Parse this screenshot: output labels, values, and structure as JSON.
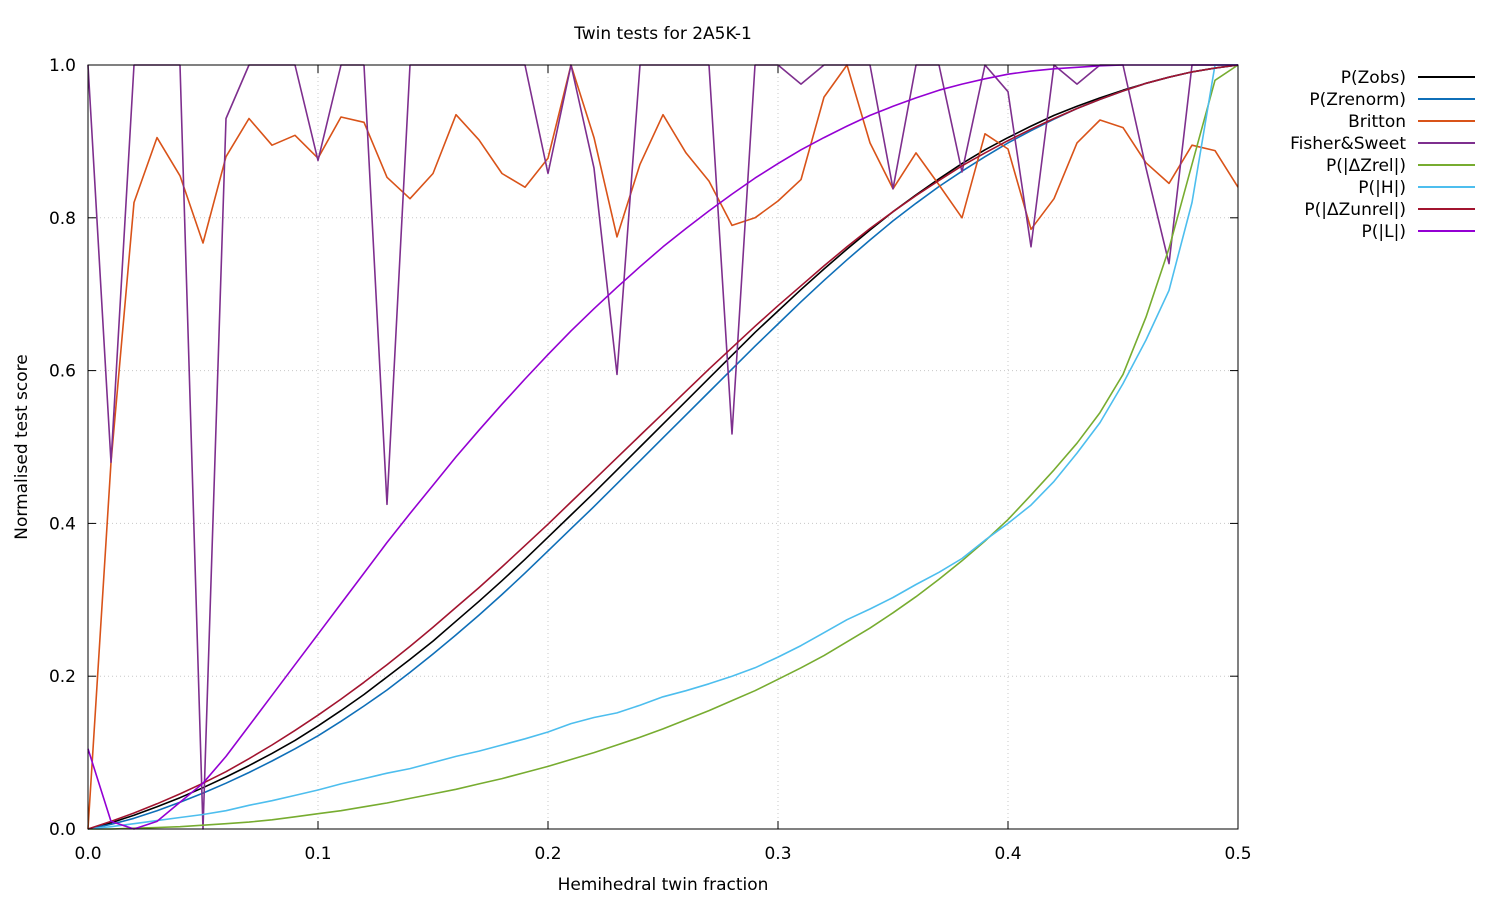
{
  "chart_data": {
    "type": "line",
    "title": "Twin tests for 2A5K-1",
    "xlabel": "Hemihedral twin fraction",
    "ylabel": "Normalised test score",
    "xlim": [
      0.0,
      0.5
    ],
    "ylim": [
      0.0,
      1.0
    ],
    "x_ticks": [
      "0.0",
      "0.1",
      "0.2",
      "0.3",
      "0.4",
      "0.5"
    ],
    "y_ticks": [
      "0.0",
      "0.2",
      "0.4",
      "0.6",
      "0.8",
      "1.0"
    ],
    "grid": true,
    "legend_position": "outside-top-right",
    "x": [
      0.0,
      0.01,
      0.02,
      0.03,
      0.04,
      0.05,
      0.06,
      0.07,
      0.08,
      0.09,
      0.1,
      0.11,
      0.12,
      0.13,
      0.14,
      0.15,
      0.16,
      0.17,
      0.18,
      0.19,
      0.2,
      0.21,
      0.22,
      0.23,
      0.24,
      0.25,
      0.26,
      0.27,
      0.28,
      0.29,
      0.3,
      0.31,
      0.32,
      0.33,
      0.34,
      0.35,
      0.36,
      0.37,
      0.38,
      0.39,
      0.4,
      0.41,
      0.42,
      0.43,
      0.44,
      0.45,
      0.46,
      0.47,
      0.48,
      0.49,
      0.5
    ],
    "series": [
      {
        "name": "P(Zobs)",
        "color": "#000000",
        "values": [
          0.0,
          0.008,
          0.018,
          0.029,
          0.041,
          0.054,
          0.068,
          0.083,
          0.099,
          0.116,
          0.135,
          0.155,
          0.176,
          0.199,
          0.222,
          0.246,
          0.272,
          0.298,
          0.325,
          0.353,
          0.382,
          0.411,
          0.44,
          0.47,
          0.5,
          0.53,
          0.56,
          0.59,
          0.62,
          0.65,
          0.678,
          0.706,
          0.733,
          0.759,
          0.784,
          0.808,
          0.83,
          0.851,
          0.871,
          0.889,
          0.905,
          0.92,
          0.934,
          0.946,
          0.957,
          0.967,
          0.976,
          0.984,
          0.991,
          0.996,
          1.0
        ]
      },
      {
        "name": "P(Zrenorm)",
        "color": "#0f6fb8",
        "values": [
          0.0,
          0.006,
          0.014,
          0.024,
          0.035,
          0.047,
          0.06,
          0.074,
          0.089,
          0.105,
          0.122,
          0.141,
          0.161,
          0.182,
          0.205,
          0.229,
          0.254,
          0.28,
          0.307,
          0.335,
          0.364,
          0.393,
          0.422,
          0.452,
          0.482,
          0.512,
          0.542,
          0.572,
          0.602,
          0.632,
          0.661,
          0.69,
          0.718,
          0.745,
          0.771,
          0.796,
          0.819,
          0.841,
          0.861,
          0.88,
          0.898,
          0.914,
          0.929,
          0.943,
          0.955,
          0.966,
          0.976,
          0.984,
          0.991,
          0.996,
          1.0
        ]
      },
      {
        "name": "Britton",
        "color": "#d95319",
        "values": [
          0.0,
          0.48,
          0.82,
          0.905,
          0.855,
          0.767,
          0.88,
          0.93,
          0.895,
          0.908,
          0.878,
          0.932,
          0.925,
          0.853,
          0.825,
          0.858,
          0.935,
          0.902,
          0.858,
          0.84,
          0.878,
          1.0,
          0.905,
          0.775,
          0.87,
          0.935,
          0.885,
          0.848,
          0.79,
          0.8,
          0.822,
          0.85,
          0.958,
          1.0,
          0.898,
          0.838,
          0.885,
          0.843,
          0.8,
          0.91,
          0.89,
          0.785,
          0.825,
          0.898,
          0.928,
          0.918,
          0.872,
          0.845,
          0.895,
          0.888,
          0.84
        ]
      },
      {
        "name": "Fisher&Sweet",
        "color": "#7e2f8e",
        "values": [
          1.0,
          0.48,
          1.0,
          1.0,
          1.0,
          0.0,
          0.93,
          1.0,
          1.0,
          1.0,
          0.875,
          1.0,
          1.0,
          0.425,
          1.0,
          1.0,
          1.0,
          1.0,
          1.0,
          1.0,
          0.858,
          1.0,
          0.865,
          0.595,
          1.0,
          1.0,
          1.0,
          1.0,
          0.517,
          1.0,
          1.0,
          0.975,
          1.0,
          1.0,
          1.0,
          0.838,
          1.0,
          1.0,
          0.86,
          1.0,
          0.965,
          0.762,
          1.0,
          0.975,
          1.0,
          1.0,
          0.865,
          0.74,
          1.0,
          1.0,
          1.0
        ]
      },
      {
        "name": "P(|ΔZrel|)",
        "color": "#77ac30",
        "values": [
          0.0,
          0.0,
          0.001,
          0.002,
          0.003,
          0.005,
          0.007,
          0.009,
          0.012,
          0.016,
          0.02,
          0.024,
          0.029,
          0.034,
          0.04,
          0.046,
          0.052,
          0.059,
          0.066,
          0.074,
          0.082,
          0.091,
          0.1,
          0.11,
          0.12,
          0.131,
          0.143,
          0.155,
          0.168,
          0.181,
          0.196,
          0.211,
          0.227,
          0.245,
          0.263,
          0.283,
          0.304,
          0.327,
          0.351,
          0.377,
          0.405,
          0.437,
          0.47,
          0.505,
          0.545,
          0.595,
          0.67,
          0.76,
          0.87,
          0.98,
          1.0
        ]
      },
      {
        "name": "P(|H|)",
        "color": "#4dbeee",
        "values": [
          0.0,
          0.003,
          0.007,
          0.011,
          0.015,
          0.019,
          0.024,
          0.031,
          0.037,
          0.044,
          0.051,
          0.059,
          0.066,
          0.073,
          0.079,
          0.087,
          0.095,
          0.102,
          0.11,
          0.118,
          0.127,
          0.138,
          0.146,
          0.152,
          0.162,
          0.173,
          0.181,
          0.19,
          0.2,
          0.211,
          0.225,
          0.24,
          0.257,
          0.274,
          0.288,
          0.303,
          0.32,
          0.336,
          0.354,
          0.378,
          0.4,
          0.424,
          0.455,
          0.492,
          0.532,
          0.583,
          0.64,
          0.705,
          0.82,
          1.0,
          1.0
        ]
      },
      {
        "name": "P(|ΔZunrel|)",
        "color": "#a2142f",
        "values": [
          0.0,
          0.01,
          0.021,
          0.033,
          0.046,
          0.06,
          0.075,
          0.092,
          0.11,
          0.129,
          0.149,
          0.17,
          0.192,
          0.215,
          0.239,
          0.264,
          0.29,
          0.316,
          0.343,
          0.371,
          0.399,
          0.428,
          0.457,
          0.486,
          0.515,
          0.544,
          0.573,
          0.602,
          0.63,
          0.658,
          0.685,
          0.711,
          0.737,
          0.762,
          0.786,
          0.808,
          0.829,
          0.849,
          0.868,
          0.885,
          0.901,
          0.916,
          0.93,
          0.943,
          0.955,
          0.966,
          0.976,
          0.984,
          0.991,
          0.996,
          1.0
        ]
      },
      {
        "name": "P(|L|)",
        "color": "#9400d3",
        "values": [
          0.105,
          0.01,
          0.0,
          0.01,
          0.035,
          0.06,
          0.095,
          0.135,
          0.175,
          0.215,
          0.255,
          0.295,
          0.335,
          0.375,
          0.413,
          0.45,
          0.487,
          0.522,
          0.556,
          0.589,
          0.621,
          0.652,
          0.681,
          0.709,
          0.736,
          0.762,
          0.786,
          0.809,
          0.831,
          0.852,
          0.871,
          0.889,
          0.905,
          0.92,
          0.934,
          0.946,
          0.957,
          0.967,
          0.975,
          0.982,
          0.988,
          0.992,
          0.995,
          0.997,
          0.999,
          1.0,
          1.0,
          1.0,
          1.0,
          1.0,
          1.0
        ]
      }
    ]
  }
}
